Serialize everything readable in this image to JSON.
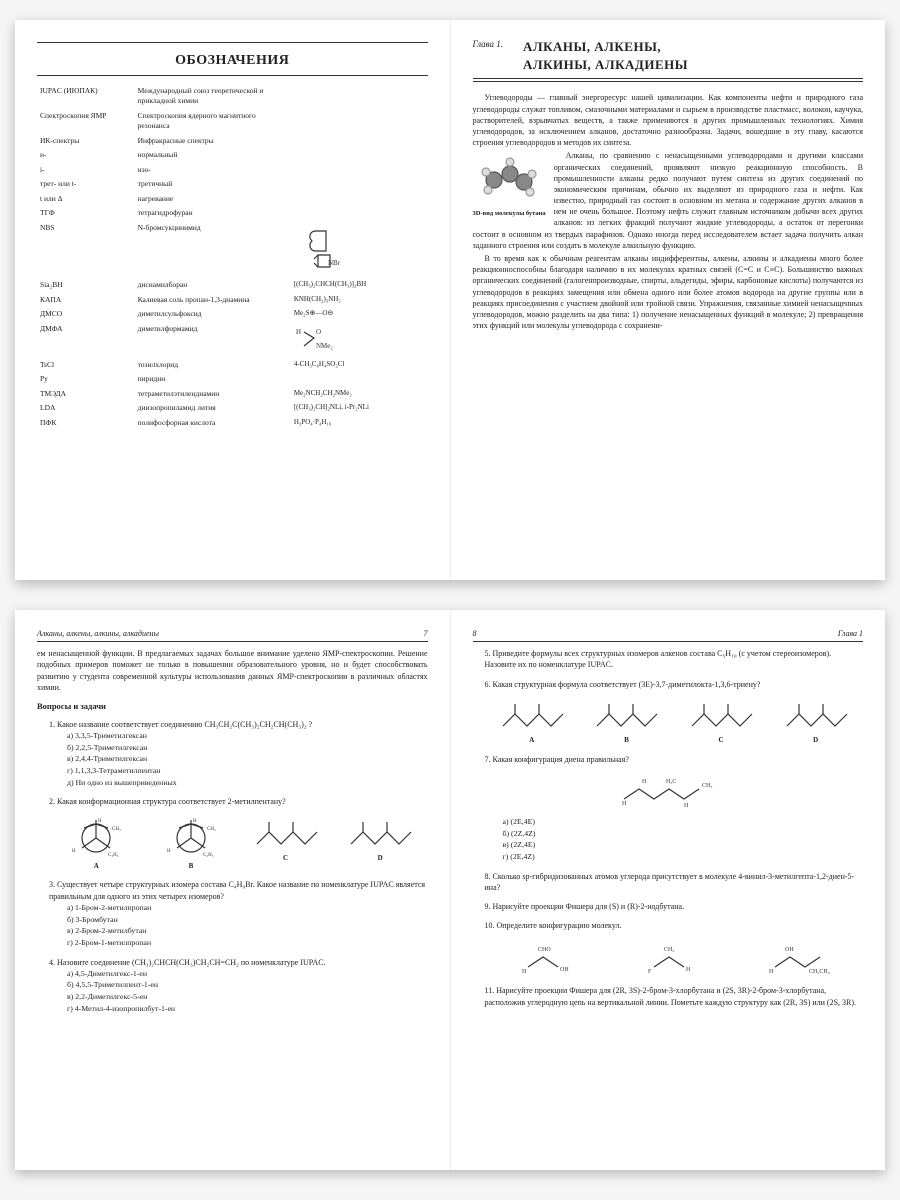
{
  "spread1": {
    "left": {
      "title": "ОБОЗНАЧЕНИЯ",
      "rows": [
        {
          "a": "IUPAC (ИЮПАК)",
          "b": "Международный союз теоретической и прикладной химии",
          "c": ""
        },
        {
          "a": "Спектроскопия ЯМР",
          "b": "Спектроскопия ядерного магнитного резонанса",
          "c": ""
        },
        {
          "a": "ИК-спектры",
          "b": "Инфракрасные спектры",
          "c": ""
        },
        {
          "a": "н-",
          "b": "нормальный",
          "c": ""
        },
        {
          "a": "i-",
          "b": "изо-",
          "c": ""
        },
        {
          "a": "трет- или t-",
          "b": "третичный",
          "c": ""
        },
        {
          "a": "t или Δ",
          "b": "нагревание",
          "c": ""
        },
        {
          "a": "ТГФ",
          "b": "тетрагидрофуран",
          "c": ""
        },
        {
          "a": "NBS",
          "b": "N-бромсукцинимид",
          "c": "svg:nbs"
        },
        {
          "a": "Sia₂BH",
          "b": "дисиамилборан",
          "c": "[(CH₃)₂CHCH(CH₃)]₂BH"
        },
        {
          "a": "КАПА",
          "b": "Калиевая соль пропан-1,3-диамина",
          "c": "KNH(CH₂)₃NH₂"
        },
        {
          "a": "ДМСО",
          "b": "диметилсульфоксид",
          "c": "Me₂S⊕—O⊖"
        },
        {
          "a": "ДМФА",
          "b": "диметилформамид",
          "c": "svg:dmfa"
        },
        {
          "a": "TsCl",
          "b": "тозилхлорид",
          "c": "4-CH₃C₆H₄SO₂Cl"
        },
        {
          "a": "Py",
          "b": "пиридин",
          "c": ""
        },
        {
          "a": "ТМЭДА",
          "b": "тетраметилэтилендиамин",
          "c": "Me₂NCH₂CH₂NMe₂"
        },
        {
          "a": "LDA",
          "b": "диизопропиламид лития",
          "c": "[(CH₃)₂CH]₂NLi, i-Pr₂NLi"
        },
        {
          "a": "ПФК",
          "b": "полифосфорная кислота",
          "c": "H₃PO₄·P₄H₁₀"
        }
      ]
    },
    "right": {
      "chapnum": "Глава 1.",
      "chaptitle1": "АЛКАНЫ, АЛКЕНЫ,",
      "chaptitle2": "АЛКИНЫ, АЛКАДИЕНЫ",
      "p1": "Углеводороды — главный энергоресурс нашей цивилизации. Как компоненты нефти и природного газа углеводороды служат топливом, смазочными материалами и сырьем в производстве пластмасс, волокон, каучука, растворителей, взрывчатых веществ, а также применяются в других промышленных технологиях. Химия углеводородов, за исключением алканов, достаточно разнообразна. Задачи, вошедшие в эту главу, касаются строения углеводородов и методов их синтеза.",
      "p2": "Алканы, по сравнению с ненасыщенными углеводородами и другими классами органических соединений, проявляют низкую реакционную способность. В промышленности алканы редко получают путем синтеза из других соединений по экономическим причинам, обычно их выделяют из природного газа и нефти. Как известно, природный газ состоит в основном из метана и содержание других алканов в нем не очень большое. Поэтому нефть служит главным источником добычи всех других алканов: из легких фракций получают жидкие углеводороды, а остаток от перегонки состоит в основном из твердых парафинов. Однако иногда перед исследователем встает задача получить алкан заданного строения или создать в молекуле алкильную функцию.",
      "mol_caption": "3D-вид молекулы бутана",
      "p3": "В то время как к обычным реагентам алканы индифферентны, алкены, алкины и алкадиены много более реакционноспособны благодаря наличию в их молекулах кратных связей (C=C и C≡C). Большинство важных органических соединений (галогенпроизводные, спирты, альдегиды, эфиры, карбоновые кислоты) получаются из углеводородов в реакциях замещения или обмена одного или более атомов водорода на другие группы или в реакциях присоединения с участием двойной или тройной связи. Упражнения, связанные химией ненасыщенных углеводородов, можно разделить на два типа: 1) получение ненасыщенных функций в молекуле; 2) превращения этих функций или молекулы углеводорода с сохранени-"
    }
  },
  "spread2": {
    "left": {
      "running_left": "Алканы, алкены, алкины, алкадиены",
      "running_right": "7",
      "intro": "ем ненасыщенной функции. В предлагаемых задачах большое внимание уделено ЯМР-спектроскопии. Решение подобных примеров поможет не только в повышении образовательного уровня, но и будет способствовать развитию у студента современной культуры использования данных ЯМР-спектроскопии в различных областях химии.",
      "qhead": "Вопросы и задачи",
      "q1": {
        "text": "Какое название соответствует соединению CH₃CH₂C(CH₃)₂CH₂CH(CH₃)₂ ?",
        "opts": [
          "3,3,5-Триметилгексан",
          "2,2,5-Триметилгексан",
          "2,4,4-Триметилгексан",
          "1,1,3,3-Тетраметилпентан",
          "Ни одно из вышеприведенных"
        ]
      },
      "q2": "Какая конформационная структура соответствует 2-метилпентану?",
      "q2_labels": [
        "A",
        "B",
        "C",
        "D"
      ],
      "q3": {
        "text": "Существует четыре структурных изомера состава C₄H₉Br. Какое название по номенклатуре IUPAC является правильным для одного из этих четырех изомеров?",
        "opts": [
          "1-Бром-2-метилпропан",
          "3-Бромбутан",
          "2-Бром-2-метилбутан",
          "2-Бром-1-метилпропан"
        ]
      },
      "q4": {
        "text": "Назовите соединение (CH₃)₂CHCH(CH₃)CH₂CH=CH₂ по номенклатуре IUPAC.",
        "opts": [
          "4,5-Диметилгекс-1-ен",
          "4,5,5-Триметилпент-1-ен",
          "2,2-Диметилгекс-5-ен",
          "4-Метил-4-изопропилбут-1-ен"
        ]
      }
    },
    "right": {
      "running_left": "8",
      "running_right": "Глава 1",
      "q5": "Приведите формулы всех структурных изомеров алкенов состава C₅H₁₀ (с учетом стереоизомеров). Назовите их по номенклатуре IUPAC.",
      "q6": "Какая структурная формула соответствует (3E)-3,7-диметилокта-1,3,6-триену?",
      "q6_labels": [
        "A",
        "B",
        "C",
        "D"
      ],
      "q7": "Какая конфигурация диена правильная?",
      "q7_opts": [
        "(2E,4E)",
        "(2Z,4Z)",
        "(2Z,4E)",
        "(2E,4Z)"
      ],
      "q8": "Сколько sp-гибридизованных атомов углерода присутствует в молекуле 4-винил-3-метилгепта-1,2-диен-5-ина?",
      "q9": "Нарисуйте проекции Фишера для (S) и (R)-2-иодбутана.",
      "q10": "Определите конфигурацию молекул.",
      "q11": "Нарисуйте проекции Фишера для (2R, 3S)-2-бром-3-хлорбутана и (2S, 3R)-2-бром-3-хлорбутана, расположив углеродную цепь на вертикальной линии. Пометьте каждую структуру как (2R, 3S) или (2S, 3R)."
    }
  },
  "colors": {
    "page_bg": "#ffffff",
    "body_bg": "#f5f5f5",
    "text": "#222222",
    "rule": "#333333"
  }
}
